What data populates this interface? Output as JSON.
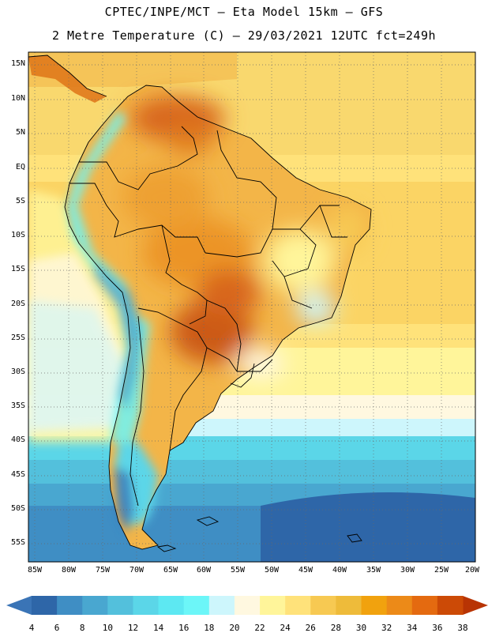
{
  "title_line1": "CPTEC/INPE/MCT –  Eta Model 15km – GFS",
  "title_line2": "2 Metre Temperature (C) – 29/03/2021 12UTC fct=249h",
  "lat_labels": [
    "15N",
    "10N",
    "5N",
    "EQ",
    "5S",
    "10S",
    "15S",
    "20S",
    "25S",
    "30S",
    "35S",
    "40S",
    "45S",
    "50S",
    "55S"
  ],
  "lon_labels": [
    "85W",
    "80W",
    "75W",
    "70W",
    "65W",
    "60W",
    "55W",
    "50W",
    "45W",
    "40W",
    "35W",
    "30W",
    "25W",
    "20W"
  ],
  "colorbar": {
    "ticks": [
      "4",
      "6",
      "8",
      "10",
      "12",
      "14",
      "16",
      "18",
      "20",
      "22",
      "24",
      "26",
      "28",
      "30",
      "32",
      "34",
      "36",
      "38"
    ],
    "colors": [
      "#3a74b6",
      "#2e66a8",
      "#3f8ec4",
      "#49a7d0",
      "#53c0dc",
      "#5bd6e8",
      "#5de8f2",
      "#6cf6f8",
      "#cdf6fc",
      "#fff8e0",
      "#fff59a",
      "#ffe27a",
      "#f7c952",
      "#eebb3a",
      "#f1a20e",
      "#ec8a18",
      "#e46a10",
      "#cc4a06",
      "#b83404"
    ]
  }
}
